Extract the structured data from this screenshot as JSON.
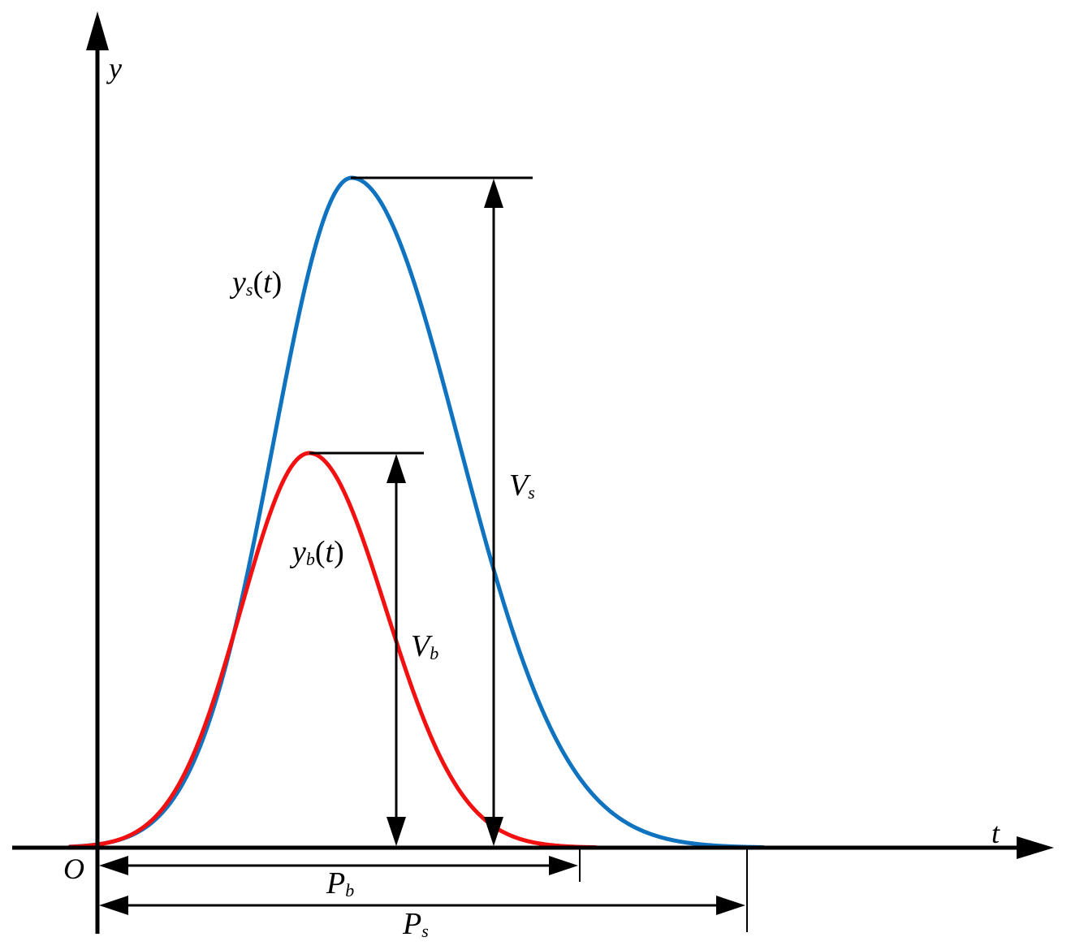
{
  "axes": {
    "x_label": "t",
    "y_label": "y",
    "origin_label": "O"
  },
  "curves": {
    "s": {
      "label_main": "y",
      "label_sub": "s",
      "label_open": "(",
      "label_var": "t",
      "label_close": ")",
      "color": "#0f73bf"
    },
    "b": {
      "label_main": "y",
      "label_sub": "b",
      "label_open": "(",
      "label_var": "t",
      "label_close": ")",
      "color": "#f21010"
    }
  },
  "dimensions": {
    "Vs": {
      "main": "V",
      "sub": "s"
    },
    "Vb": {
      "main": "V",
      "sub": "b"
    },
    "Pb": {
      "main": "P",
      "sub": "b"
    },
    "Ps": {
      "main": "P",
      "sub": "s"
    }
  }
}
